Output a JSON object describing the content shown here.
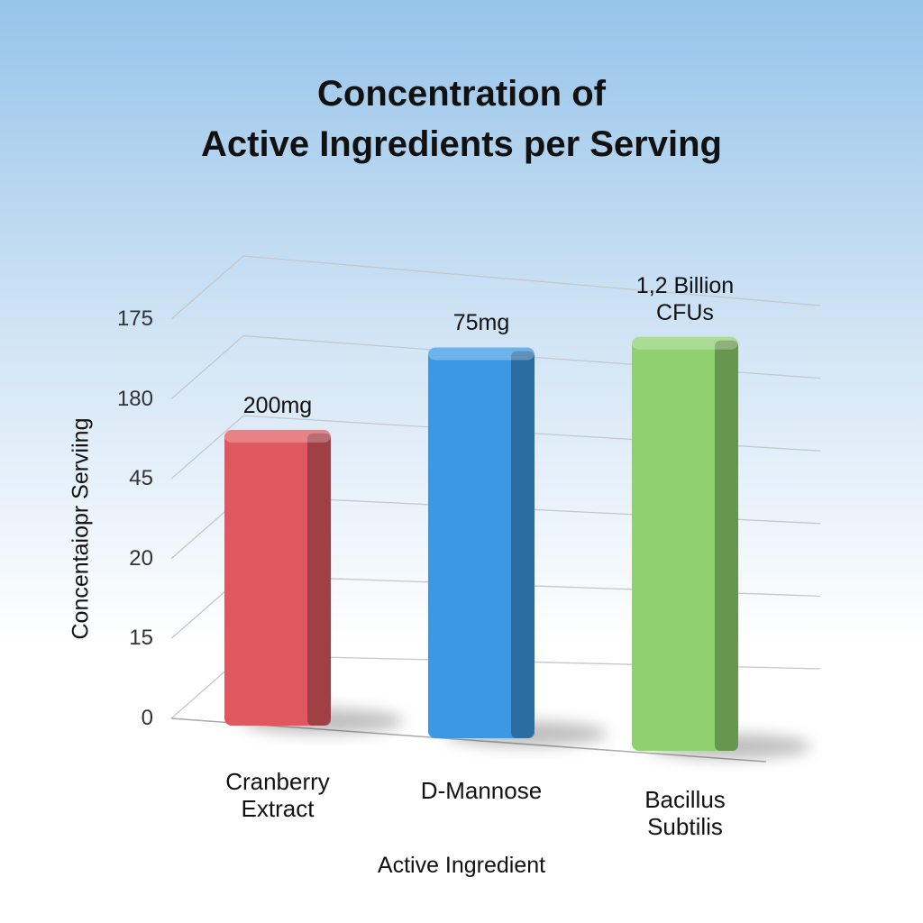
{
  "chart_data": {
    "type": "bar3d",
    "title": [
      "Concentration of",
      "Active Ingredients per Serving"
    ],
    "x_label": "Active Ingredient",
    "y_label": "Concentaiopr Serviing",
    "categories": [
      "Cranberry Extract",
      "D-Mannose",
      "Bacillus Subtilis"
    ],
    "values": [
      3.5,
      4.6,
      4.8
    ],
    "bar_labels": [
      "200mg",
      "75mg",
      "1,2 Billion CFUs"
    ],
    "colors": [
      "#e0585f",
      "#3c98e2",
      "#8fd06f"
    ],
    "ylim": [
      0,
      5.3
    ],
    "yticks": [
      {
        "value": 0,
        "label": "0"
      },
      {
        "value": 1,
        "label": "15"
      },
      {
        "value": 2,
        "label": "20"
      },
      {
        "value": 3,
        "label": "45"
      },
      {
        "value": 4,
        "label": "180"
      },
      {
        "value": 5,
        "label": "175"
      }
    ],
    "grid": true
  }
}
